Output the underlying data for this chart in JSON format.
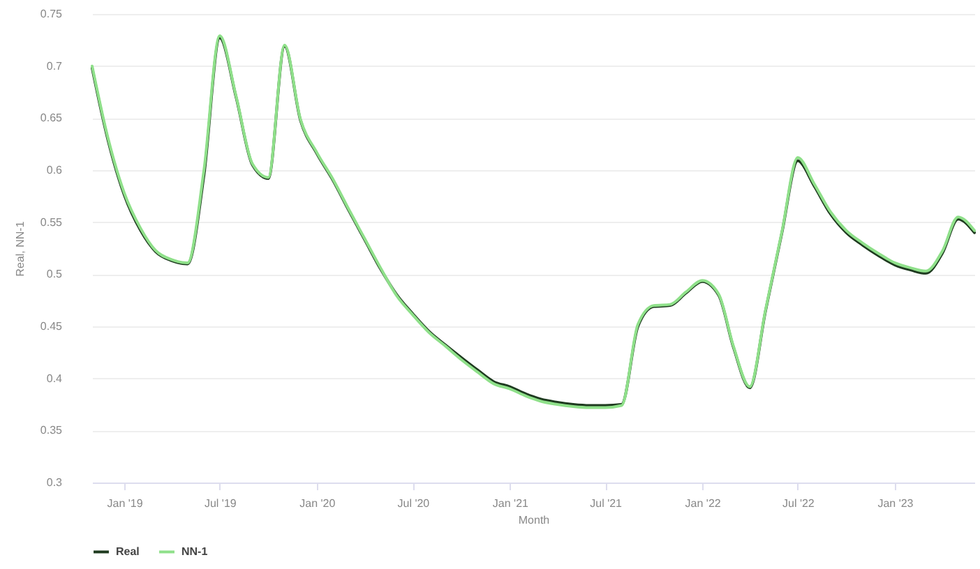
{
  "chart_data": {
    "type": "line",
    "xlabel": "Month",
    "ylabel": "Real, NN-1",
    "x": [
      "2018-11",
      "2018-12",
      "2019-01",
      "2019-02",
      "2019-03",
      "2019-04",
      "2019-05",
      "2019-06",
      "2019-07",
      "2019-08",
      "2019-09",
      "2019-10",
      "2019-11",
      "2019-12",
      "2020-01",
      "2020-02",
      "2020-03",
      "2020-04",
      "2020-05",
      "2020-06",
      "2020-07",
      "2020-08",
      "2020-09",
      "2020-10",
      "2020-11",
      "2020-12",
      "2021-01",
      "2021-02",
      "2021-03",
      "2021-04",
      "2021-05",
      "2021-06",
      "2021-07",
      "2021-08",
      "2021-09",
      "2021-10",
      "2021-11",
      "2021-12",
      "2022-01",
      "2022-02",
      "2022-03",
      "2022-04",
      "2022-05",
      "2022-06",
      "2022-07",
      "2022-08",
      "2022-09",
      "2022-10",
      "2022-11",
      "2022-12",
      "2023-01",
      "2023-02",
      "2023-03",
      "2023-04",
      "2023-05",
      "2023-06"
    ],
    "series": [
      {
        "name": "Real",
        "color": "#1e3a1f",
        "values": [
          0.698,
          0.629,
          0.576,
          0.542,
          0.522,
          0.513,
          0.51,
          0.595,
          0.727,
          0.67,
          0.605,
          0.592,
          0.719,
          0.648,
          0.616,
          0.59,
          0.562,
          0.533,
          0.505,
          0.48,
          0.462,
          0.445,
          0.432,
          0.42,
          0.408,
          0.397,
          0.392,
          0.385,
          0.38,
          0.377,
          0.375,
          0.374,
          0.374,
          0.375,
          0.45,
          0.469,
          0.47,
          0.482,
          0.493,
          0.48,
          0.43,
          0.391,
          0.465,
          0.54,
          0.609,
          0.585,
          0.558,
          0.54,
          0.528,
          0.518,
          0.509,
          0.504,
          0.501,
          0.52,
          0.553,
          0.54
        ]
      },
      {
        "name": "NN-1",
        "color": "#8fe08a",
        "values": [
          0.7,
          0.631,
          0.578,
          0.544,
          0.523,
          0.514,
          0.511,
          0.6,
          0.729,
          0.671,
          0.606,
          0.593,
          0.72,
          0.649,
          0.617,
          0.591,
          0.563,
          0.534,
          0.506,
          0.479,
          0.461,
          0.444,
          0.431,
          0.418,
          0.406,
          0.395,
          0.39,
          0.383,
          0.378,
          0.375,
          0.373,
          0.372,
          0.372,
          0.374,
          0.452,
          0.47,
          0.471,
          0.483,
          0.494,
          0.481,
          0.431,
          0.392,
          0.466,
          0.541,
          0.612,
          0.587,
          0.56,
          0.542,
          0.53,
          0.52,
          0.511,
          0.506,
          0.503,
          0.522,
          0.555,
          0.542
        ]
      }
    ],
    "xlim": [
      "2018-11",
      "2023-06"
    ],
    "xticks": [
      {
        "value": "2019-01",
        "label": "Jan '19"
      },
      {
        "value": "2019-07",
        "label": "Jul '19"
      },
      {
        "value": "2020-01",
        "label": "Jan '20"
      },
      {
        "value": "2020-07",
        "label": "Jul '20"
      },
      {
        "value": "2021-01",
        "label": "Jan '21"
      },
      {
        "value": "2021-07",
        "label": "Jul '21"
      },
      {
        "value": "2022-01",
        "label": "Jan '22"
      },
      {
        "value": "2022-07",
        "label": "Jul '22"
      },
      {
        "value": "2023-01",
        "label": "Jan '23"
      }
    ],
    "ylim": [
      0.3,
      0.75
    ],
    "yticks": [
      0.3,
      0.35,
      0.4,
      0.45,
      0.5,
      0.55,
      0.6,
      0.65,
      0.7,
      0.75
    ],
    "grid": "y",
    "legend": "bottom",
    "line_style": "solid",
    "marker": "none"
  }
}
